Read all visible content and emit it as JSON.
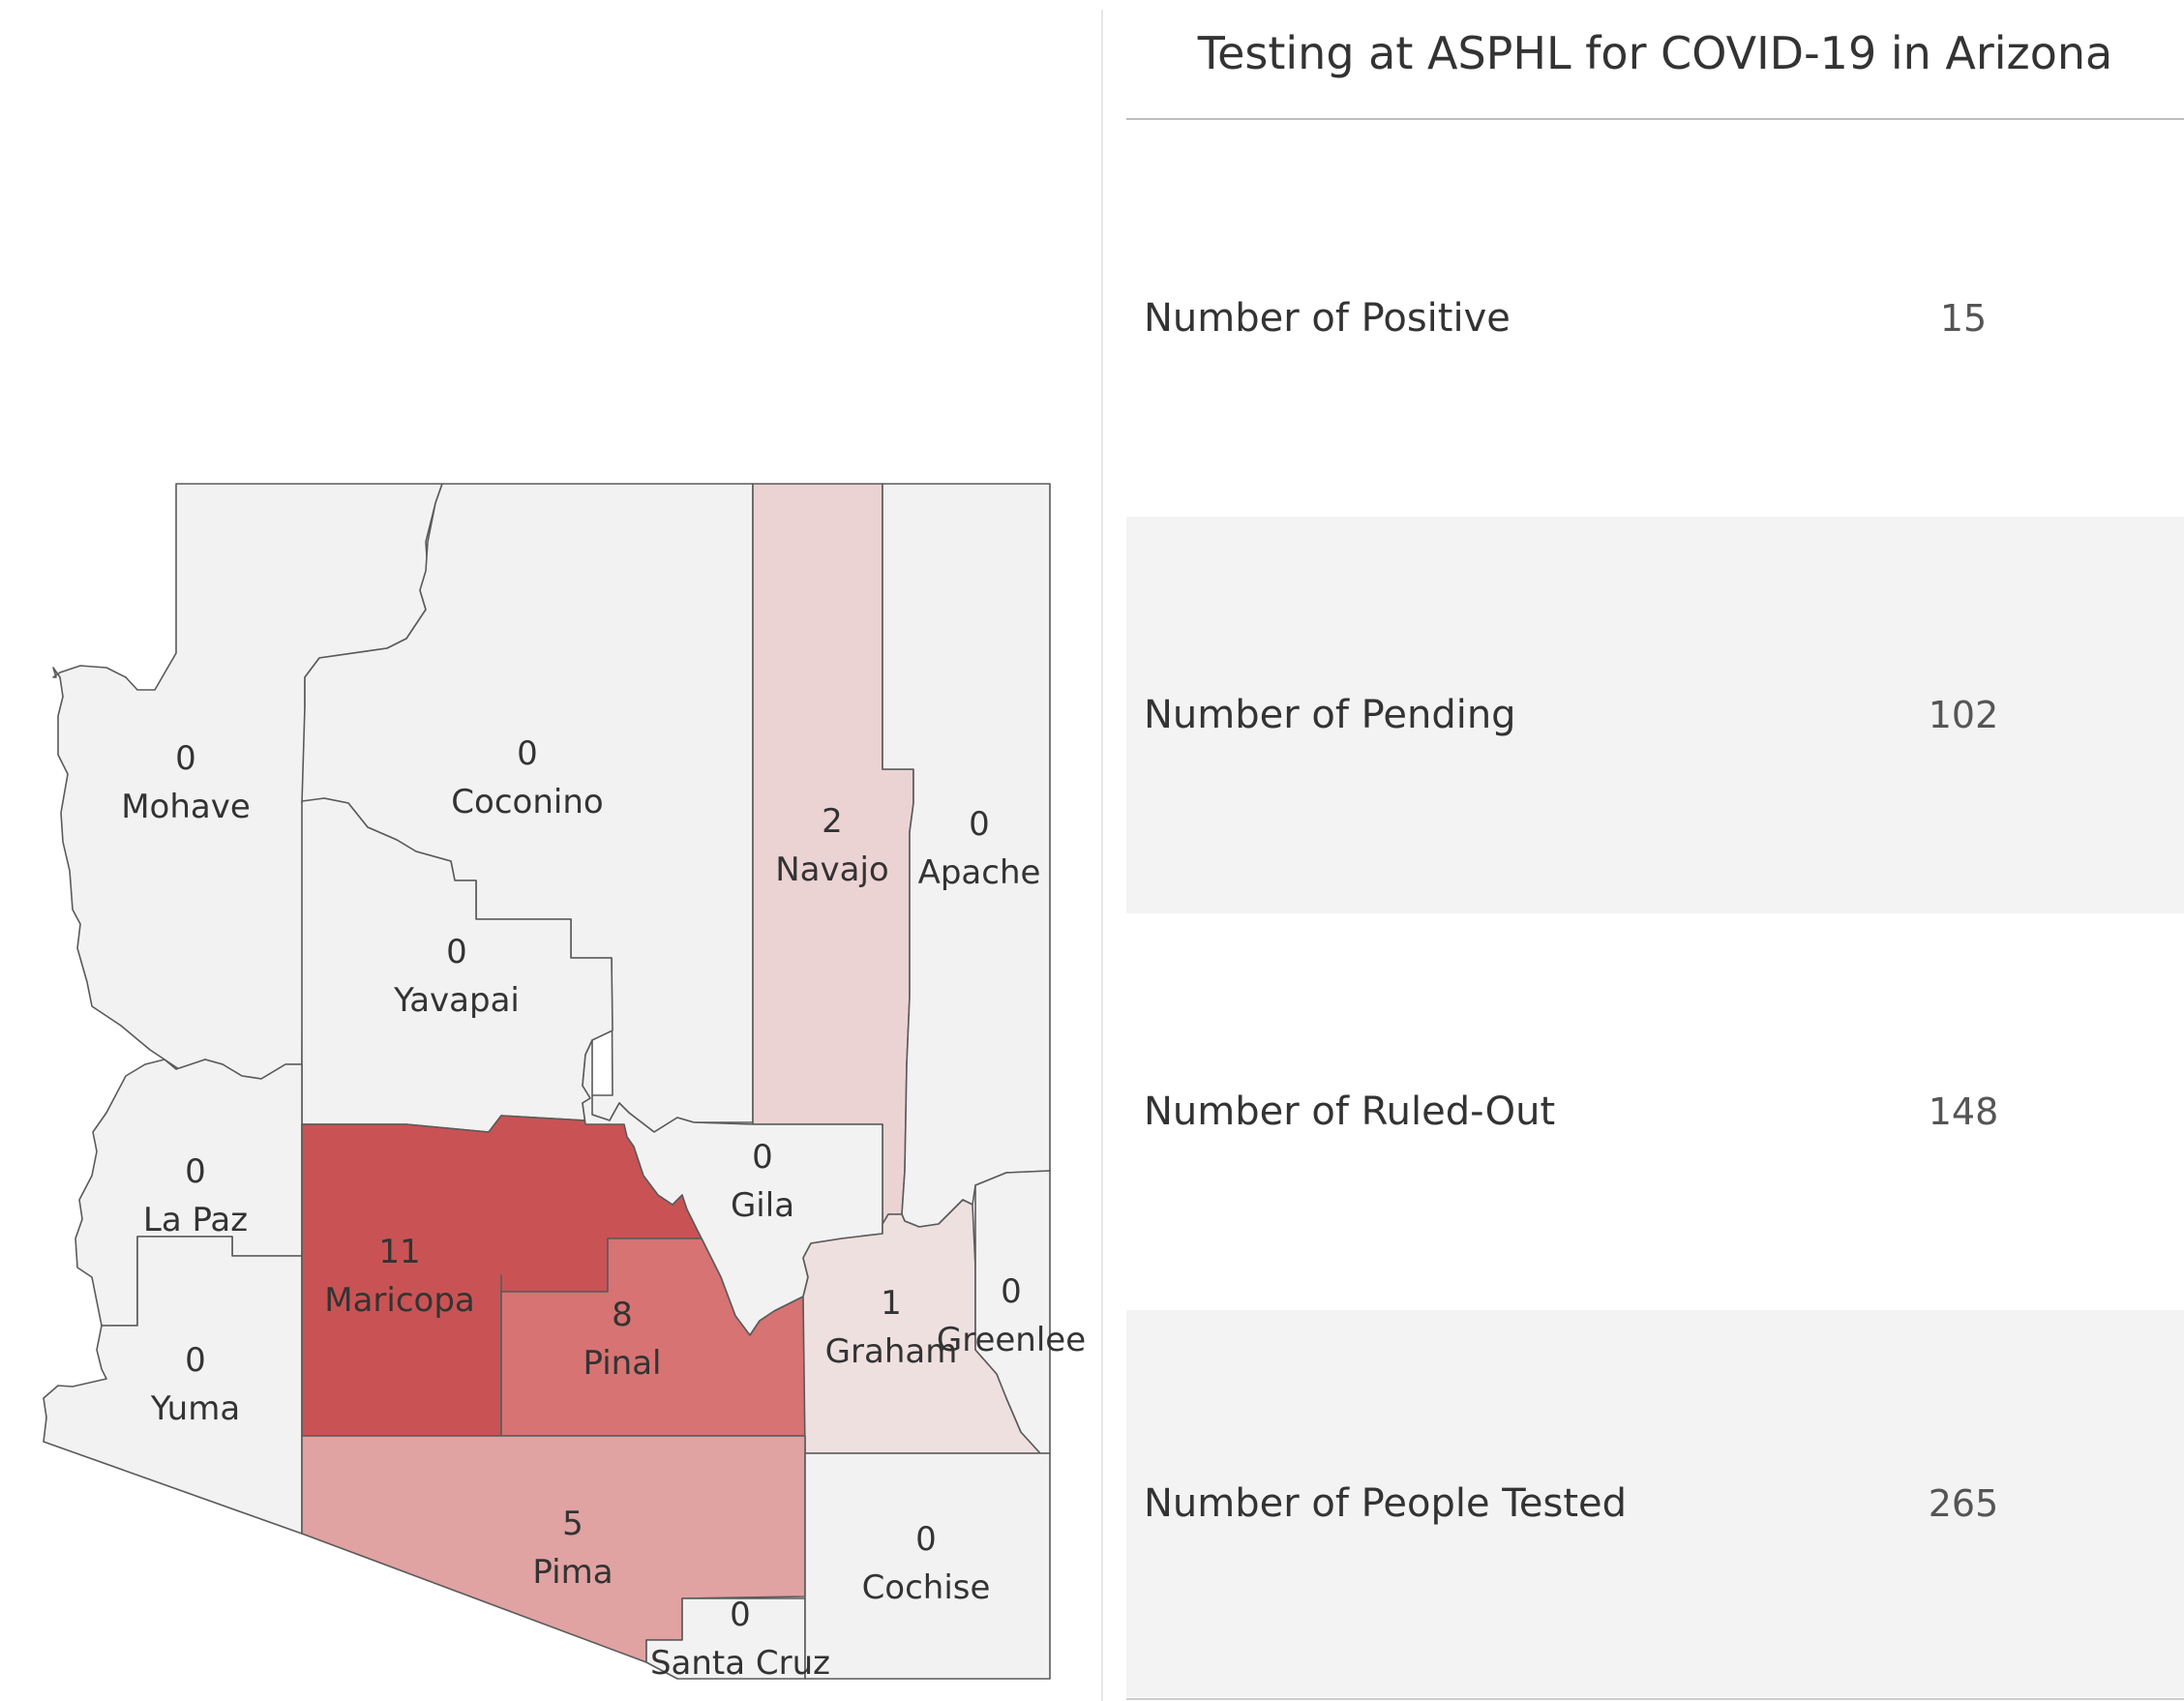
{
  "title": "Testing at ASPHL for COVID-19 in Arizona",
  "colors": {
    "none": "#f2f2f2",
    "low": "#efe0e0",
    "light": "#ecd3d3",
    "mid_light": "#e1a2a2",
    "mid": "#d77373",
    "high": "#c95354"
  },
  "stats": [
    {
      "label": "Number of Positive",
      "value": "15"
    },
    {
      "label": "Number of Pending",
      "value": "102"
    },
    {
      "label": "Number of Ruled-Out",
      "value": "148"
    },
    {
      "label": "Number of People Tested",
      "value": "265"
    }
  ],
  "counties": {
    "mohave": {
      "name": "Mohave",
      "count": "0"
    },
    "coconino": {
      "name": "Coconino",
      "count": "0"
    },
    "navajo": {
      "name": "Navajo",
      "count": "2"
    },
    "apache": {
      "name": "Apache",
      "count": "0"
    },
    "yavapai": {
      "name": "Yavapai",
      "count": "0"
    },
    "la_paz": {
      "name": "La Paz",
      "count": "0"
    },
    "maricopa": {
      "name": "Maricopa",
      "count": "11"
    },
    "gila": {
      "name": "Gila",
      "count": "0"
    },
    "pinal": {
      "name": "Pinal",
      "count": "8"
    },
    "graham": {
      "name": "Graham",
      "count": "1"
    },
    "greenlee": {
      "name": "Greenlee",
      "count": "0"
    },
    "yuma": {
      "name": "Yuma",
      "count": "0"
    },
    "pima": {
      "name": "Pima",
      "count": "5"
    },
    "cochise": {
      "name": "Cochise",
      "count": "0"
    },
    "santa_cruz": {
      "name": "Santa Cruz",
      "count": "0"
    }
  }
}
